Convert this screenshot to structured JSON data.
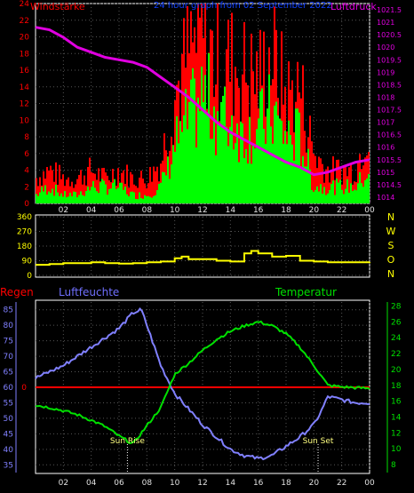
{
  "chart_data": [
    {
      "type": "bar",
      "title": "24 hour graph from 02 September 2022",
      "left_axis_label": "Windstärke",
      "right_axis_label": "Luftdruck",
      "left_ylim": [
        0,
        24
      ],
      "left_ticks": [
        "0",
        "2",
        "4",
        "6",
        "8",
        "10",
        "12",
        "14",
        "16",
        "18",
        "20",
        "22",
        "24"
      ],
      "right_ylim": [
        1013.75,
        1021.75
      ],
      "right_ticks": [
        "1014",
        "1014.5",
        "1015",
        "1015.5",
        "1016",
        "1016.5",
        "1017",
        "1017.5",
        "1018",
        "1018.5",
        "1019",
        "1019.5",
        "1020",
        "1020.5",
        "1021",
        "1021.5"
      ],
      "x_ticks": [
        "02",
        "04",
        "06",
        "08",
        "10",
        "12",
        "14",
        "16",
        "18",
        "20",
        "22",
        "00"
      ],
      "x_range": [
        0,
        24
      ],
      "series": [
        {
          "name": "Luftdruck",
          "color": "#e000e0",
          "x": [
            0,
            1,
            2,
            3,
            4,
            5,
            6,
            7,
            8,
            9,
            10,
            11,
            12,
            13,
            14,
            15,
            16,
            17,
            18,
            19,
            20,
            21,
            22,
            23,
            24
          ],
          "values": [
            1020.8,
            1020.7,
            1020.4,
            1020.0,
            1019.8,
            1019.6,
            1019.5,
            1019.4,
            1019.2,
            1018.8,
            1018.4,
            1018.0,
            1017.5,
            1017.0,
            1016.6,
            1016.3,
            1016.0,
            1015.7,
            1015.4,
            1015.2,
            1014.9,
            1015.0,
            1015.2,
            1015.4,
            1015.5
          ]
        },
        {
          "name": "Windböen",
          "color": "#ff0000",
          "x": [
            0,
            1,
            2,
            3,
            4,
            5,
            6,
            7,
            8,
            9,
            10,
            11,
            12,
            13,
            14,
            15,
            16,
            17,
            18,
            19,
            20,
            21,
            22,
            23,
            24
          ],
          "values": [
            3,
            4,
            3,
            3,
            4,
            3,
            4,
            3,
            3,
            5,
            13,
            18,
            20,
            17,
            17,
            16,
            15,
            18,
            13,
            14,
            6,
            4,
            4,
            4,
            10
          ]
        },
        {
          "name": "Windstärke",
          "color": "#00ff00",
          "x": [
            0,
            1,
            2,
            3,
            4,
            5,
            6,
            7,
            8,
            9,
            10,
            11,
            12,
            13,
            14,
            15,
            16,
            17,
            18,
            19,
            20,
            21,
            22,
            23,
            24
          ],
          "values": [
            1,
            2,
            1,
            1,
            2,
            2,
            2,
            1,
            1,
            2,
            7,
            10,
            13,
            11,
            10,
            9,
            9,
            11,
            8,
            8,
            2,
            2,
            2,
            2,
            4
          ]
        }
      ]
    },
    {
      "type": "line",
      "ylim": [
        0,
        360
      ],
      "y_ticks": [
        "0",
        "90",
        "180",
        "270",
        "360"
      ],
      "right_labels": [
        "N",
        "W",
        "S",
        "O",
        "N"
      ],
      "series": [
        {
          "name": "Windrichtung",
          "color": "#ffff00",
          "x": [
            0,
            1,
            2,
            3,
            4,
            5,
            6,
            7,
            8,
            9,
            10,
            10.5,
            11,
            12,
            13,
            14,
            15,
            15.5,
            16,
            17,
            18,
            19,
            20,
            21,
            22,
            23,
            24
          ],
          "values": [
            65,
            70,
            75,
            75,
            80,
            75,
            72,
            75,
            80,
            85,
            105,
            115,
            100,
            100,
            90,
            85,
            135,
            150,
            135,
            115,
            120,
            90,
            85,
            80,
            80,
            80,
            82
          ]
        }
      ]
    },
    {
      "type": "line",
      "left_axis_label": "Regen",
      "mid_label": "Luftfeuchte",
      "right_axis_label": "Temperatur",
      "humidity_ylim": [
        32.5,
        87.5
      ],
      "humidity_ticks": [
        "35",
        "40",
        "45",
        "50",
        "55",
        "60",
        "65",
        "70",
        "75",
        "80",
        "85"
      ],
      "temperature_ylim": [
        7,
        28.5
      ],
      "temperature_ticks": [
        "8",
        "10",
        "12",
        "14",
        "16",
        "18",
        "20",
        "22",
        "24",
        "26",
        "28"
      ],
      "rain_label": "0",
      "x_ticks": [
        "02",
        "04",
        "06",
        "08",
        "10",
        "12",
        "14",
        "16",
        "18",
        "20",
        "22",
        "00"
      ],
      "annotations": [
        {
          "text": "Sun Rise",
          "x": 6.6
        },
        {
          "text": "Sun Set",
          "x": 20.3
        }
      ],
      "series": [
        {
          "name": "Luftfeuchte",
          "color": "#8080ff",
          "axis": "humidity",
          "x": [
            0,
            1,
            2,
            3,
            4,
            5,
            6,
            7,
            7.6,
            8,
            9,
            10,
            11,
            12,
            13,
            14,
            15,
            16,
            17,
            18,
            19,
            20,
            20.5,
            21,
            22,
            23,
            24
          ],
          "values": [
            63,
            65,
            67,
            70,
            73,
            76,
            79,
            84,
            85,
            80,
            67,
            58,
            53,
            48,
            44,
            40,
            38,
            37,
            38,
            41,
            44,
            48,
            52,
            57,
            56,
            55,
            55
          ]
        },
        {
          "name": "Temperatur",
          "color": "#00e000",
          "axis": "temperature",
          "x": [
            0,
            1,
            2,
            3,
            4,
            5,
            6,
            7,
            8,
            9,
            10,
            11,
            12,
            13,
            14,
            15,
            16,
            17,
            18,
            19,
            20,
            21,
            22,
            23,
            24
          ],
          "values": [
            15.5,
            15.2,
            14.8,
            14.3,
            13.6,
            12.8,
            11.6,
            10.6,
            12.9,
            15.2,
            19.4,
            20.8,
            22.4,
            23.8,
            24.8,
            25.5,
            26.0,
            25.5,
            24.5,
            22.8,
            20.5,
            18.0,
            17.8,
            17.7,
            17.6
          ]
        },
        {
          "name": "Regen",
          "color": "#ff0000",
          "axis": "rain",
          "x": [
            0,
            24
          ],
          "values": [
            0,
            0
          ]
        }
      ]
    }
  ]
}
